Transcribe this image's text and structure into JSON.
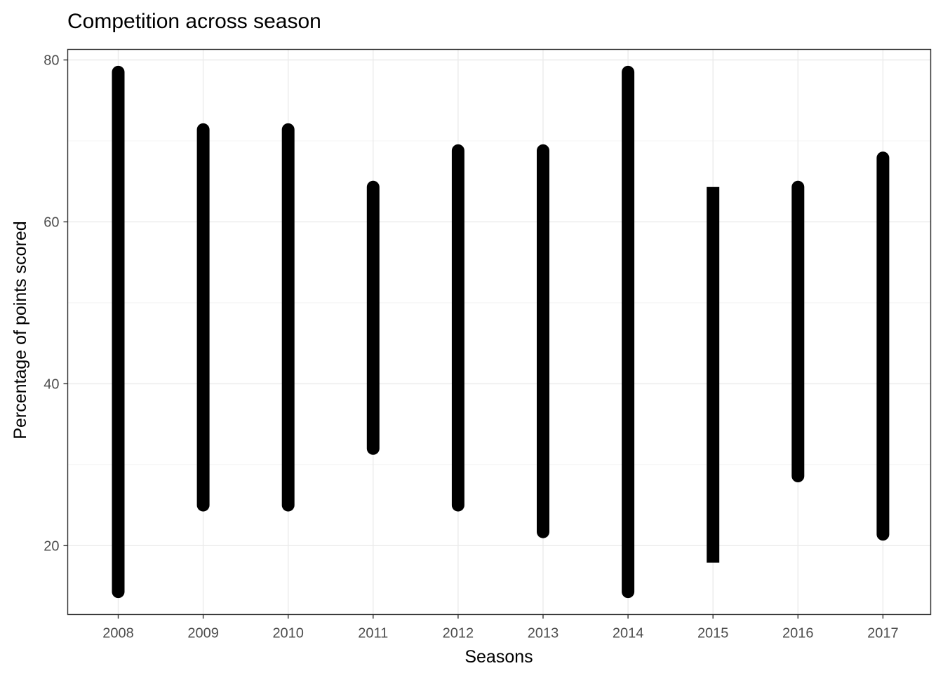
{
  "chart_data": {
    "type": "range",
    "title": "Competition across season",
    "xlabel": "Seasons",
    "ylabel": "Percentage of points scored",
    "categories": [
      "2008",
      "2009",
      "2010",
      "2011",
      "2012",
      "2013",
      "2014",
      "2015",
      "2016",
      "2017"
    ],
    "low": [
      14.3,
      25.0,
      25.0,
      32.0,
      25.0,
      21.7,
      14.3,
      17.9,
      28.6,
      21.4
    ],
    "high": [
      78.5,
      71.4,
      71.4,
      64.3,
      68.8,
      68.8,
      78.5,
      64.3,
      64.3,
      67.9
    ],
    "ylim": [
      11.5,
      81.3
    ],
    "yticks": [
      20,
      40,
      60,
      80
    ],
    "grid": true,
    "bar_color": "#000000"
  }
}
